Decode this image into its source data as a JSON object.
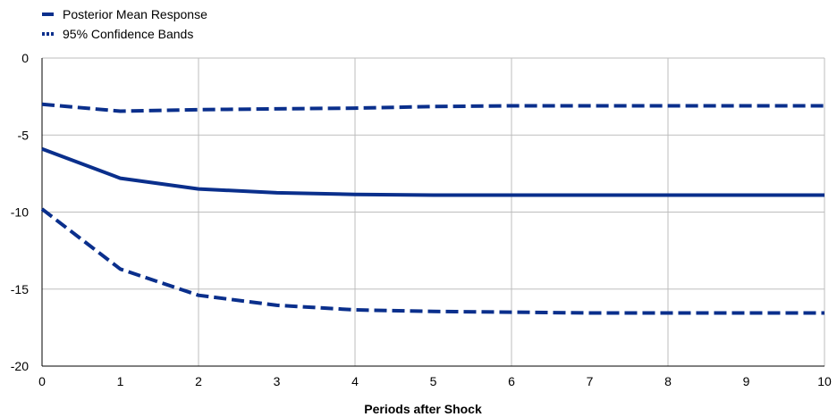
{
  "chart_data": {
    "type": "line",
    "title": "",
    "xlabel": "Periods after Shock",
    "ylabel": "",
    "xlim": [
      0,
      10
    ],
    "ylim": [
      -20,
      0
    ],
    "x": [
      0,
      1,
      2,
      3,
      4,
      5,
      6,
      7,
      8,
      9,
      10
    ],
    "xticks": [
      "0",
      "1",
      "2",
      "3",
      "4",
      "5",
      "6",
      "7",
      "8",
      "9",
      "10"
    ],
    "yticks": [
      0,
      -5,
      -10,
      -15,
      -20
    ],
    "ytick_labels": [
      "0",
      "-5",
      "-10",
      "-15",
      "-20"
    ],
    "grid": true,
    "legend_position": "top-left",
    "series": [
      {
        "name": "Posterior Mean Response",
        "style": "solid",
        "color": "#0a2f8c",
        "values": [
          -5.9,
          -7.8,
          -8.5,
          -8.75,
          -8.85,
          -8.9,
          -8.9,
          -8.9,
          -8.9,
          -8.9,
          -8.9
        ]
      },
      {
        "name": "95% Confidence Bands",
        "style": "dashed",
        "color": "#0a2f8c",
        "values": [
          -3.0,
          -3.45,
          -3.35,
          -3.3,
          -3.25,
          -3.15,
          -3.1,
          -3.1,
          -3.1,
          -3.1,
          -3.1
        ]
      },
      {
        "name": "",
        "style": "dashed",
        "color": "#0a2f8c",
        "values": [
          -9.8,
          -13.7,
          -15.4,
          -16.05,
          -16.35,
          -16.45,
          -16.5,
          -16.55,
          -16.55,
          -16.55,
          -16.55
        ]
      }
    ],
    "legend": [
      {
        "label": "Posterior Mean Response",
        "style": "solid"
      },
      {
        "label": "95% Confidence Bands",
        "style": "dashed"
      }
    ]
  }
}
